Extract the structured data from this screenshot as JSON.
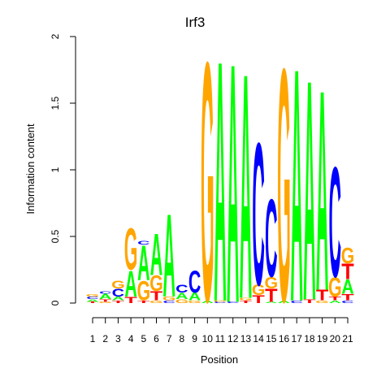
{
  "chart_data": {
    "type": "sequence-logo",
    "title": "Irf3",
    "xlabel": "Position",
    "ylabel": "Information content",
    "ylim": [
      0,
      2
    ],
    "yticks": [
      "0",
      "0.5",
      "1",
      "1.5",
      "2"
    ],
    "xticks": [
      "1",
      "2",
      "3",
      "4",
      "5",
      "6",
      "7",
      "8",
      "9",
      "10",
      "11",
      "12",
      "13",
      "14",
      "15",
      "16",
      "17",
      "18",
      "19",
      "20",
      "21"
    ],
    "colors": {
      "A": "#00ff00",
      "C": "#0000ff",
      "G": "#ffa500",
      "T": "#ff0000"
    },
    "positions": [
      [
        [
          "T",
          0.01
        ],
        [
          "A",
          0.02
        ],
        [
          "C",
          0.02
        ],
        [
          "G",
          0.02
        ]
      ],
      [
        [
          "G",
          0.01
        ],
        [
          "T",
          0.02
        ],
        [
          "A",
          0.04
        ],
        [
          "C",
          0.02
        ]
      ],
      [
        [
          "T",
          0.02
        ],
        [
          "A",
          0.03
        ],
        [
          "C",
          0.06
        ],
        [
          "G",
          0.06
        ]
      ],
      [
        [
          "T",
          0.05
        ],
        [
          "A",
          0.2
        ],
        [
          "G",
          0.32
        ]
      ],
      [
        [
          "T",
          0.02
        ],
        [
          "G",
          0.15
        ],
        [
          "A",
          0.27
        ],
        [
          "C",
          0.03
        ]
      ],
      [
        [
          "G",
          0.02
        ],
        [
          "T",
          0.07
        ],
        [
          "G",
          0.12
        ],
        [
          "A",
          0.32
        ]
      ],
      [
        [
          "C",
          0.02
        ],
        [
          "G",
          0.03
        ],
        [
          "A",
          0.64
        ]
      ],
      [
        [
          "G",
          0.03
        ],
        [
          "A",
          0.05
        ],
        [
          "C",
          0.06
        ]
      ],
      [
        [
          "G",
          0.02
        ],
        [
          "A",
          0.06
        ],
        [
          "C",
          0.17
        ]
      ],
      [
        [
          "A",
          0.02
        ],
        [
          "G",
          1.85
        ]
      ],
      [
        [
          "C",
          0.01
        ],
        [
          "G",
          0.01
        ],
        [
          "A",
          1.86
        ]
      ],
      [
        [
          "C",
          0.01
        ],
        [
          "A",
          1.85
        ]
      ],
      [
        [
          "T",
          0.02
        ],
        [
          "G",
          0.02
        ],
        [
          "A",
          1.74
        ]
      ],
      [
        [
          "T",
          0.06
        ],
        [
          "G",
          0.08
        ],
        [
          "C",
          1.1
        ]
      ],
      [
        [
          "A",
          0.01
        ],
        [
          "T",
          0.1
        ],
        [
          "G",
          0.09
        ],
        [
          "C",
          0.6
        ]
      ],
      [
        [
          "A",
          0.02
        ],
        [
          "G",
          1.8
        ]
      ],
      [
        [
          "C",
          0.02
        ],
        [
          "A",
          1.8
        ]
      ],
      [
        [
          "T",
          0.03
        ],
        [
          "A",
          1.7
        ]
      ],
      [
        [
          "G",
          0.02
        ],
        [
          "T",
          0.08
        ],
        [
          "A",
          1.55
        ]
      ],
      [
        [
          "A",
          0.02
        ],
        [
          "T",
          0.03
        ],
        [
          "G",
          0.15
        ],
        [
          "C",
          0.85
        ]
      ],
      [
        [
          "C",
          0.02
        ],
        [
          "T",
          0.05
        ],
        [
          "A",
          0.11
        ],
        [
          "T",
          0.12
        ],
        [
          "G",
          0.12
        ]
      ]
    ]
  }
}
